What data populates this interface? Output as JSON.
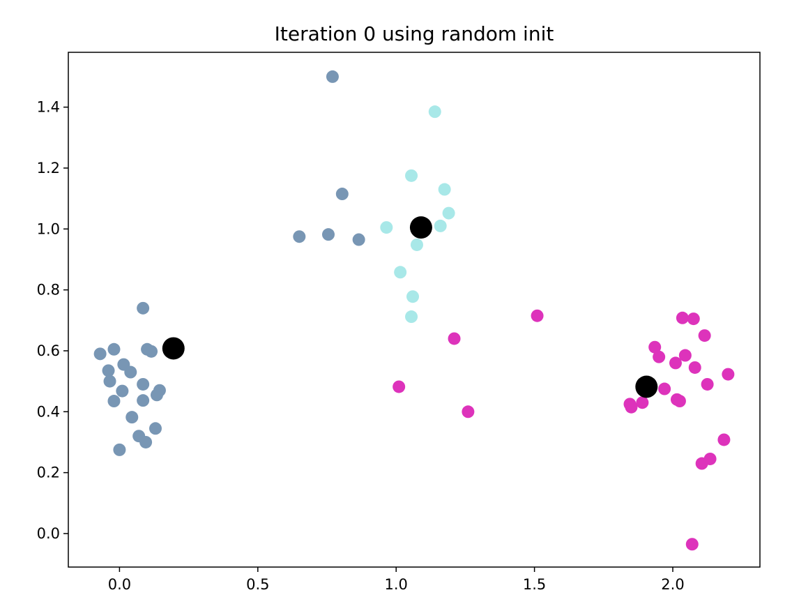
{
  "chart_data": {
    "type": "scatter",
    "title": "Iteration 0 using random init",
    "xlabel": "",
    "ylabel": "",
    "xlim": [
      -0.185,
      2.315
    ],
    "ylim": [
      -0.11,
      1.58
    ],
    "grid": false,
    "x_ticks": [
      0.0,
      0.5,
      1.0,
      1.5,
      2.0
    ],
    "x_tick_labels": [
      "0.0",
      "0.5",
      "1.0",
      "1.5",
      "2.0"
    ],
    "y_ticks": [
      0.0,
      0.2,
      0.4,
      0.6,
      0.8,
      1.0,
      1.2,
      1.4
    ],
    "y_tick_labels": [
      "0.0",
      "0.2",
      "0.4",
      "0.6",
      "0.8",
      "1.0",
      "1.2",
      "1.4"
    ],
    "series": [
      {
        "color": "#7896b4",
        "points": [
          [
            -0.07,
            0.59
          ],
          [
            -0.02,
            0.605
          ],
          [
            0.085,
            0.74
          ],
          [
            0.1,
            0.605
          ],
          [
            0.115,
            0.598
          ],
          [
            -0.04,
            0.535
          ],
          [
            0.015,
            0.555
          ],
          [
            0.04,
            0.53
          ],
          [
            -0.035,
            0.5
          ],
          [
            0.085,
            0.49
          ],
          [
            0.145,
            0.47
          ],
          [
            0.135,
            0.455
          ],
          [
            0.01,
            0.468
          ],
          [
            -0.02,
            0.435
          ],
          [
            0.085,
            0.437
          ],
          [
            0.045,
            0.382
          ],
          [
            0.13,
            0.345
          ],
          [
            0.07,
            0.32
          ],
          [
            0.095,
            0.3
          ],
          [
            0.0,
            0.275
          ],
          [
            0.77,
            1.5
          ],
          [
            0.805,
            1.115
          ],
          [
            0.65,
            0.975
          ],
          [
            0.755,
            0.982
          ],
          [
            0.865,
            0.965
          ]
        ]
      },
      {
        "color": "#a8e8e8",
        "points": [
          [
            1.14,
            1.385
          ],
          [
            1.055,
            1.175
          ],
          [
            1.175,
            1.13
          ],
          [
            1.19,
            1.052
          ],
          [
            1.16,
            1.01
          ],
          [
            0.965,
            1.005
          ],
          [
            1.085,
            0.99
          ],
          [
            1.075,
            0.948
          ],
          [
            1.015,
            0.858
          ],
          [
            1.06,
            0.778
          ],
          [
            1.055,
            0.712
          ]
        ]
      },
      {
        "color": "#dd33bb",
        "points": [
          [
            1.51,
            0.715
          ],
          [
            1.21,
            0.64
          ],
          [
            1.01,
            0.482
          ],
          [
            1.26,
            0.4
          ],
          [
            2.035,
            0.708
          ],
          [
            2.075,
            0.705
          ],
          [
            2.115,
            0.65
          ],
          [
            1.935,
            0.612
          ],
          [
            1.95,
            0.58
          ],
          [
            2.045,
            0.585
          ],
          [
            2.01,
            0.56
          ],
          [
            2.08,
            0.545
          ],
          [
            2.2,
            0.523
          ],
          [
            2.125,
            0.49
          ],
          [
            1.97,
            0.475
          ],
          [
            2.015,
            0.44
          ],
          [
            2.025,
            0.435
          ],
          [
            1.845,
            0.425
          ],
          [
            1.85,
            0.415
          ],
          [
            1.89,
            0.43
          ],
          [
            2.185,
            0.308
          ],
          [
            2.135,
            0.245
          ],
          [
            2.105,
            0.23
          ],
          [
            2.07,
            -0.035
          ]
        ]
      }
    ],
    "centroids": {
      "color": "#000000",
      "points": [
        [
          0.195,
          0.608
        ],
        [
          1.09,
          1.005
        ],
        [
          1.905,
          0.482
        ]
      ]
    }
  }
}
